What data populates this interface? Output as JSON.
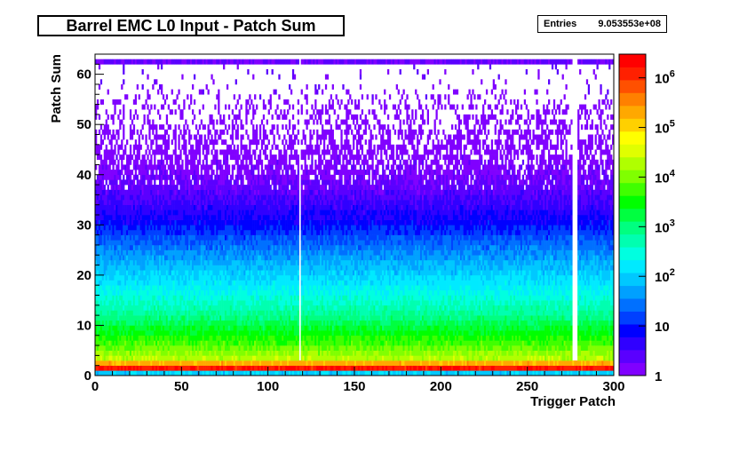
{
  "title": "Barrel EMC L0 Input - Patch Sum",
  "stats": {
    "label": "Entries",
    "value": "9.053553e+08"
  },
  "palette": [
    "#8000ff",
    "#5a00ff",
    "#3000ff",
    "#0000ff",
    "#0040ff",
    "#0070ff",
    "#00a0ff",
    "#00c8ff",
    "#00eaff",
    "#00ffe0",
    "#00ffb0",
    "#00ff80",
    "#00ff40",
    "#00ff00",
    "#40ff00",
    "#80ff00",
    "#b0ff00",
    "#e0ff00",
    "#ffff00",
    "#ffd000",
    "#ffa800",
    "#ff8000",
    "#ff5000",
    "#ff2000",
    "#ff0000"
  ],
  "chart_data": {
    "type": "heatmap",
    "title": "Barrel EMC L0 Input - Patch Sum",
    "xlabel": "Trigger Patch",
    "ylabel": "Patch Sum",
    "xlim": [
      0,
      300
    ],
    "ylim": [
      0,
      64
    ],
    "x_ticks": [
      0,
      50,
      100,
      150,
      200,
      250,
      300
    ],
    "y_ticks": [
      0,
      10,
      20,
      30,
      40,
      50,
      60
    ],
    "z_scale": "log",
    "zlim": [
      1,
      3000000
    ],
    "z_ticks": [
      {
        "value": 1,
        "label": "1"
      },
      {
        "value": 10,
        "label": "10"
      },
      {
        "value": 100,
        "label": "10",
        "exp": "2"
      },
      {
        "value": 1000,
        "label": "10",
        "exp": "3"
      },
      {
        "value": 10000,
        "label": "10",
        "exp": "4"
      },
      {
        "value": 100000,
        "label": "10",
        "exp": "5"
      },
      {
        "value": 1000000,
        "label": "10",
        "exp": "6"
      }
    ],
    "entries": "9.053553e+08",
    "profile": {
      "description_free": true,
      "rows": [
        {
          "y": 0,
          "z": 100
        },
        {
          "y": 1,
          "z": 1500000
        },
        {
          "y": 2,
          "z": 200000
        },
        {
          "y": 3,
          "z": 20000
        },
        {
          "y": 5,
          "z": 8000
        },
        {
          "y": 8,
          "z": 3000
        },
        {
          "y": 12,
          "z": 700
        },
        {
          "y": 16,
          "z": 250
        },
        {
          "y": 20,
          "z": 100
        },
        {
          "y": 25,
          "z": 30
        },
        {
          "y": 30,
          "z": 8
        },
        {
          "y": 35,
          "z": 3
        },
        {
          "y": 40,
          "z": 1.5
        },
        {
          "y": 50,
          "z": 1
        },
        {
          "y": 62,
          "z": 2
        }
      ],
      "empty_columns": [
        118,
        276,
        277,
        278
      ]
    }
  }
}
